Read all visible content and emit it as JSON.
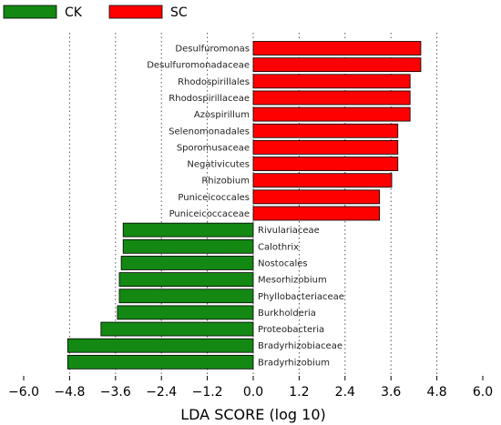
{
  "chart_data": {
    "type": "bar",
    "orientation": "horizontal",
    "xlabel": "LDA SCORE (log 10)",
    "xlim": [
      -6.0,
      6.0
    ],
    "xticks": [
      -6.0,
      -4.8,
      -3.6,
      -2.4,
      -1.2,
      0.0,
      1.2,
      2.4,
      3.6,
      4.8,
      6.0
    ],
    "tick_labels": [
      "−6.0",
      "−4.8",
      "−3.6",
      "−2.4",
      "−1.2",
      "0.0",
      "1.2",
      "2.4",
      "3.6",
      "4.8",
      "6.0"
    ],
    "grid": "vertical-dotted",
    "legend_position": "top-left",
    "legend": [
      {
        "label": "CK",
        "color": "#138813"
      },
      {
        "label": "SC",
        "color": "#ff0000"
      }
    ],
    "series": [
      {
        "group": "SC",
        "color": "#ff0000",
        "categories": [
          "Desulfuromonas",
          "Desulfuromonadaceae",
          "Rhodospirillales",
          "Rhodospirillaceae",
          "Azospirillum",
          "Selenomonadales",
          "Sporomusaceae",
          "Negativicutes",
          "Rhizobium",
          "Puniceicoccales",
          "Puniceicoccaceae"
        ],
        "values": [
          4.38,
          4.38,
          4.1,
          4.1,
          4.1,
          3.78,
          3.78,
          3.78,
          3.62,
          3.3,
          3.3
        ]
      },
      {
        "group": "CK",
        "color": "#138813",
        "categories": [
          "Rivulariaceae",
          "Calothrix",
          "Nostocales",
          "Mesorhizobium",
          "Phyllobacteriaceae",
          "Burkholderia",
          "Proteobacteria",
          "Bradyrhizobiaceae",
          "Bradyrhizobium"
        ],
        "values": [
          -3.4,
          -3.4,
          -3.45,
          -3.5,
          -3.5,
          -3.55,
          -3.98,
          -4.85,
          -4.85
        ]
      }
    ]
  }
}
